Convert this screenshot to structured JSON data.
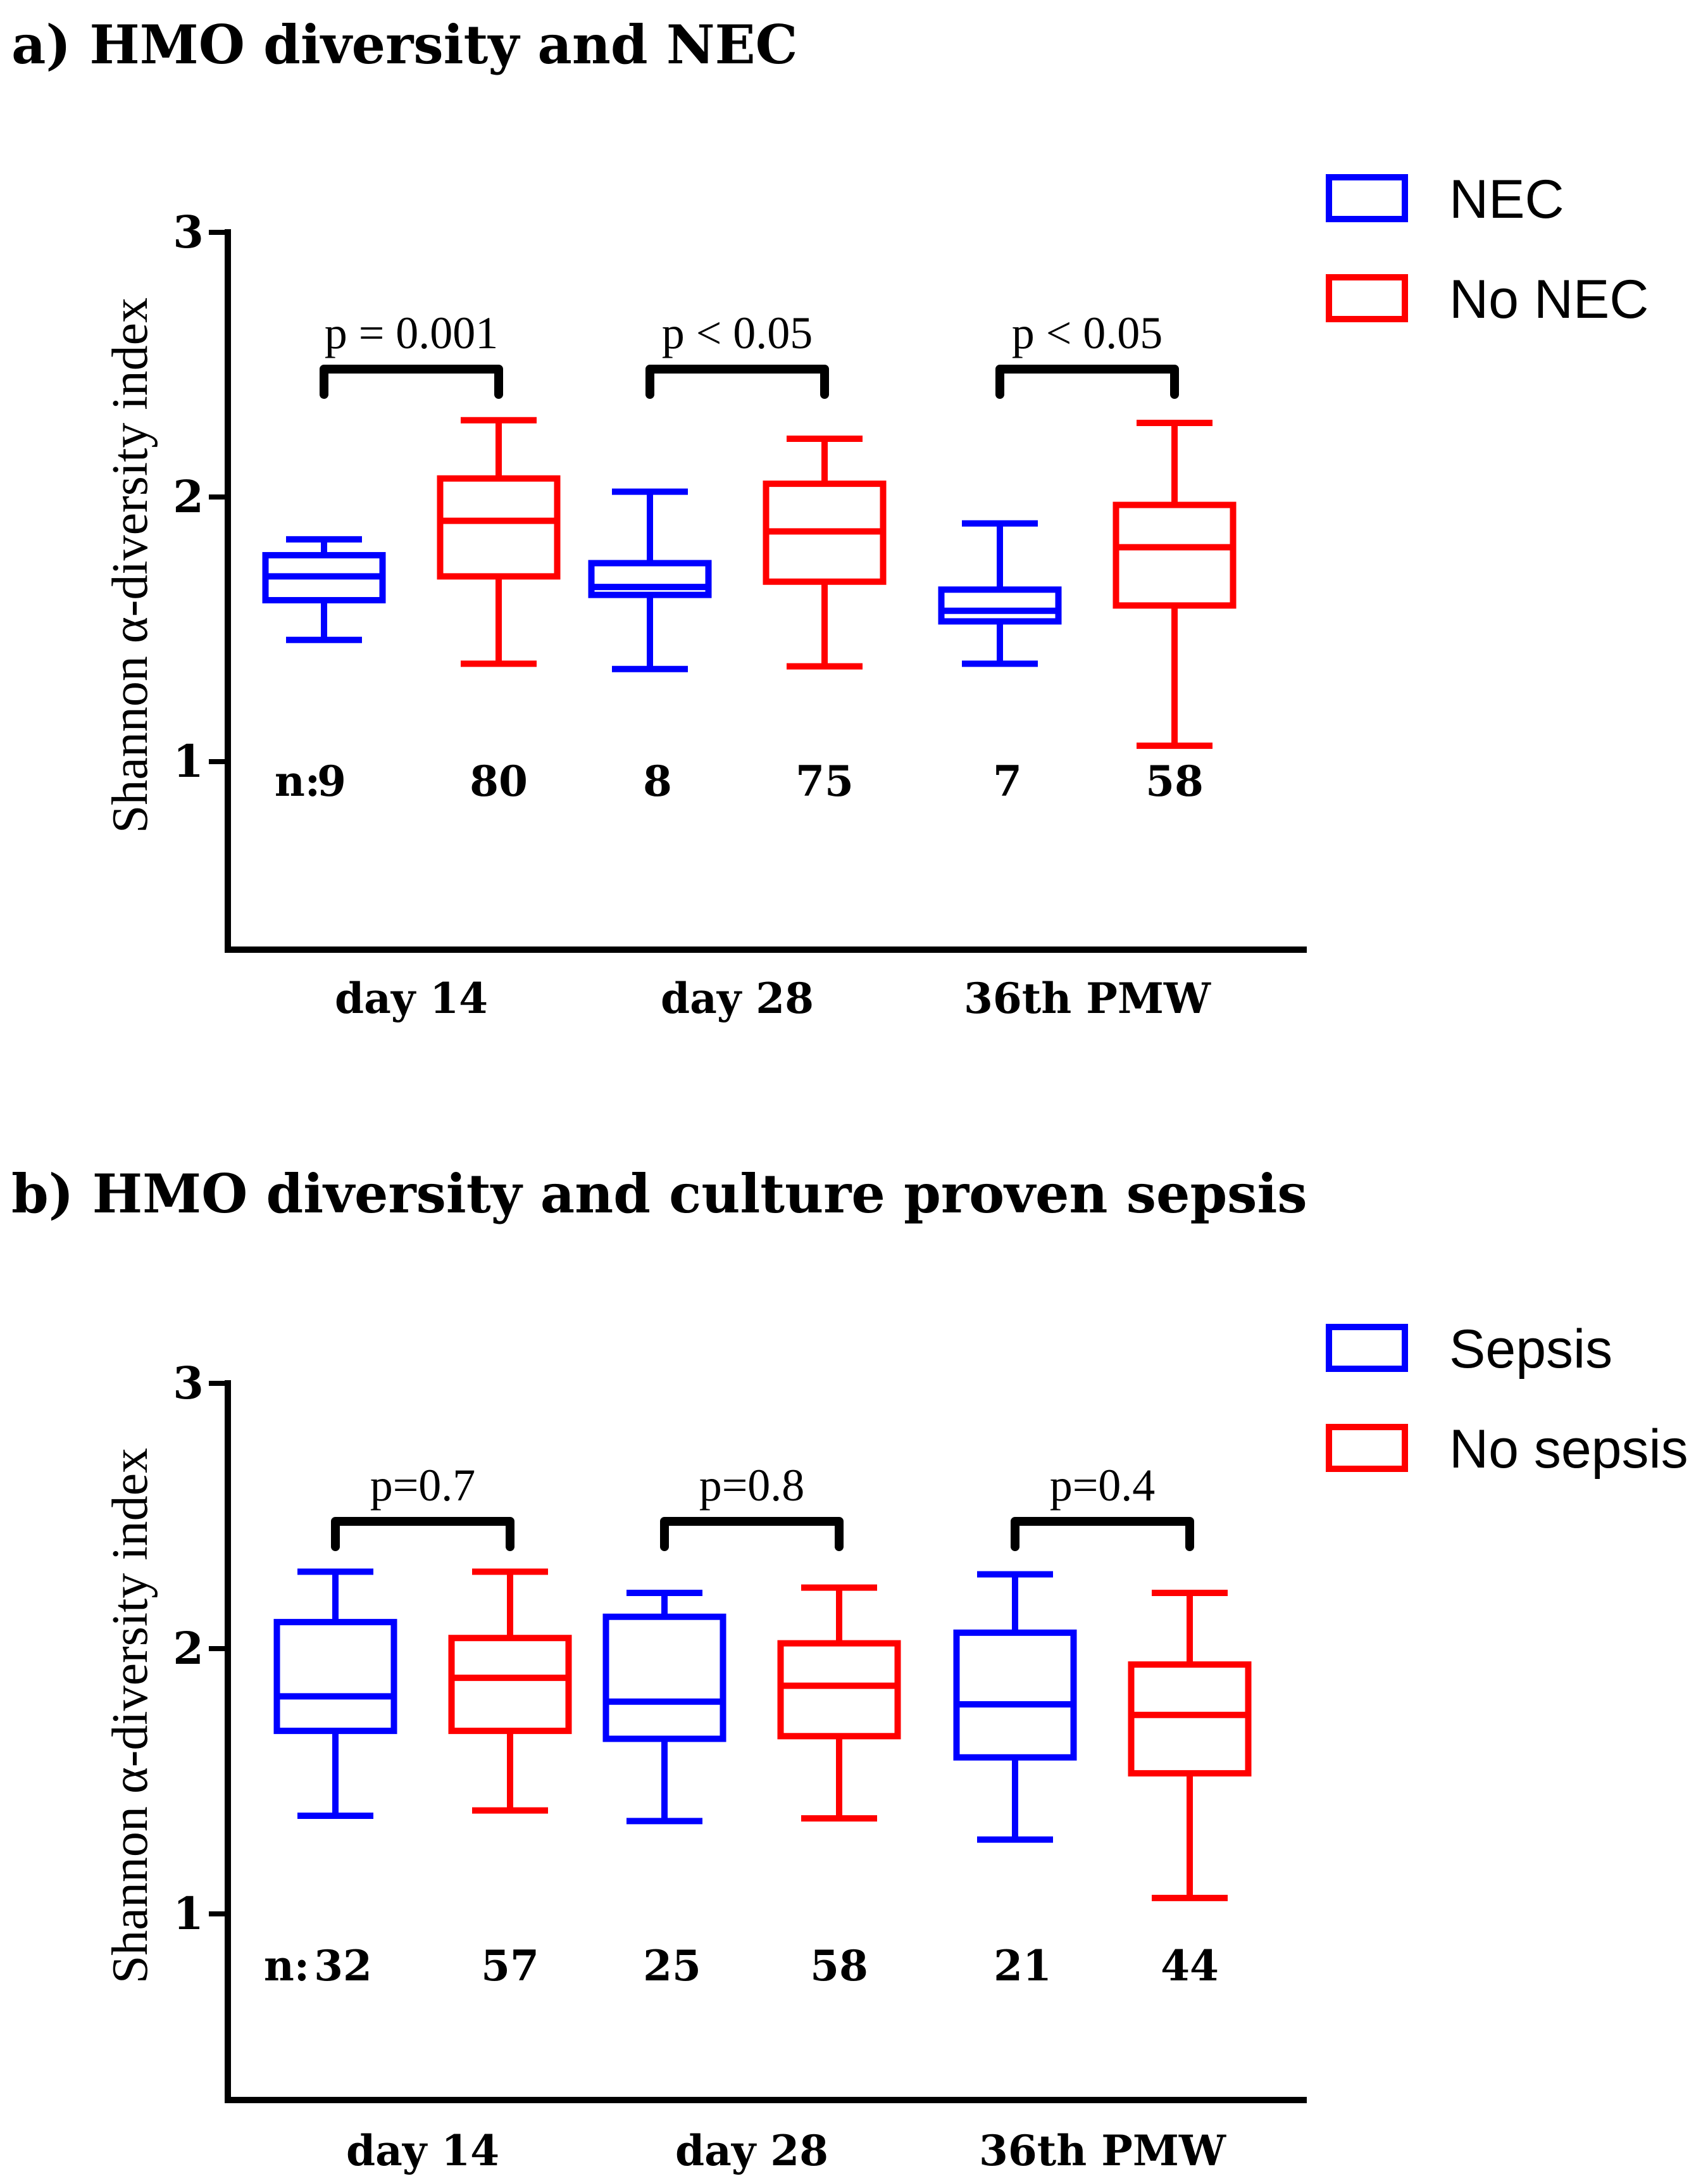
{
  "chart_data": [
    {
      "type": "boxplot",
      "panel_title": "a) HMO diversity and NEC",
      "ylabel": "Shannon α-diversity index",
      "ylim": [
        0.35,
        3
      ],
      "yticks": [
        "1",
        "2",
        "3"
      ],
      "categories": [
        "day 14",
        "day 28",
        "36th PMW"
      ],
      "n_prefix": "n:",
      "p_values": [
        "p = 0.001",
        "p < 0.05",
        "p < 0.05"
      ],
      "series": [
        {
          "name": "NEC",
          "color": "#0000FF",
          "n": [
            "9",
            "8",
            "7"
          ],
          "boxes": [
            {
              "min": 1.46,
              "q1": 1.61,
              "median": 1.7,
              "q3": 1.78,
              "max": 1.84
            },
            {
              "min": 1.35,
              "q1": 1.63,
              "median": 1.66,
              "q3": 1.75,
              "max": 2.02
            },
            {
              "min": 1.37,
              "q1": 1.53,
              "median": 1.57,
              "q3": 1.65,
              "max": 1.9
            }
          ]
        },
        {
          "name": "No NEC",
          "color": "#FF0000",
          "n": [
            "80",
            "75",
            "58"
          ],
          "boxes": [
            {
              "min": 1.37,
              "q1": 1.7,
              "median": 1.91,
              "q3": 2.07,
              "max": 2.29
            },
            {
              "min": 1.36,
              "q1": 1.68,
              "median": 1.87,
              "q3": 2.05,
              "max": 2.22
            },
            {
              "min": 1.06,
              "q1": 1.59,
              "median": 1.81,
              "q3": 1.97,
              "max": 2.28
            }
          ]
        }
      ]
    },
    {
      "type": "boxplot",
      "panel_title": "b) HMO diversity and culture proven sepsis",
      "ylabel": "Shannon α-diversity index",
      "ylim": [
        0.35,
        3
      ],
      "yticks": [
        "1",
        "2",
        "3"
      ],
      "categories": [
        "day 14",
        "day 28",
        "36th PMW"
      ],
      "n_prefix": "n:",
      "p_values": [
        "p=0.7",
        "p=0.8",
        "p=0.4"
      ],
      "series": [
        {
          "name": "Sepsis",
          "color": "#0000FF",
          "n": [
            "32",
            "25",
            "21"
          ],
          "boxes": [
            {
              "min": 1.37,
              "q1": 1.69,
              "median": 1.82,
              "q3": 2.1,
              "max": 2.29
            },
            {
              "min": 1.35,
              "q1": 1.66,
              "median": 1.8,
              "q3": 2.12,
              "max": 2.21
            },
            {
              "min": 1.28,
              "q1": 1.59,
              "median": 1.79,
              "q3": 2.06,
              "max": 2.28
            }
          ]
        },
        {
          "name": "No sepsis",
          "color": "#FF0000",
          "n": [
            "57",
            "58",
            "44"
          ],
          "boxes": [
            {
              "min": 1.39,
              "q1": 1.69,
              "median": 1.89,
              "q3": 2.04,
              "max": 2.29
            },
            {
              "min": 1.36,
              "q1": 1.67,
              "median": 1.86,
              "q3": 2.02,
              "max": 2.23
            },
            {
              "min": 1.06,
              "q1": 1.53,
              "median": 1.75,
              "q3": 1.94,
              "max": 2.21
            }
          ]
        }
      ]
    }
  ]
}
